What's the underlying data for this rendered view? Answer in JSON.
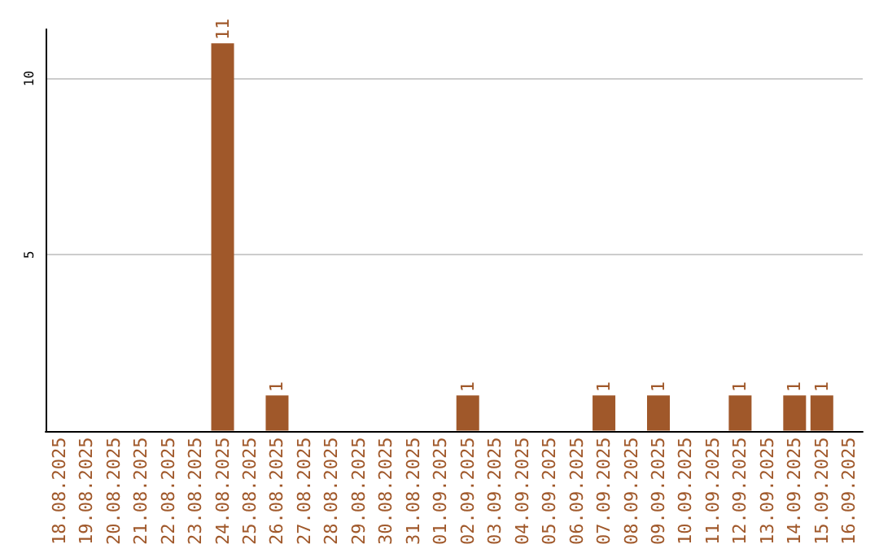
{
  "chart_data": {
    "type": "bar",
    "categories": [
      "18.08.2025",
      "19.08.2025",
      "20.08.2025",
      "21.08.2025",
      "22.08.2025",
      "23.08.2025",
      "24.08.2025",
      "25.08.2025",
      "26.08.2025",
      "27.08.2025",
      "28.08.2025",
      "29.08.2025",
      "30.08.2025",
      "31.08.2025",
      "01.09.2025",
      "02.09.2025",
      "03.09.2025",
      "04.09.2025",
      "05.09.2025",
      "06.09.2025",
      "07.09.2025",
      "08.09.2025",
      "09.09.2025",
      "10.09.2025",
      "11.09.2025",
      "12.09.2025",
      "13.09.2025",
      "14.09.2025",
      "15.09.2025",
      "16.09.2025"
    ],
    "values": [
      0,
      0,
      0,
      0,
      0,
      0,
      11,
      0,
      1,
      0,
      0,
      0,
      0,
      0,
      0,
      1,
      0,
      0,
      0,
      0,
      1,
      0,
      1,
      0,
      0,
      1,
      0,
      1,
      1,
      0
    ],
    "value_labels": [
      null,
      null,
      null,
      null,
      null,
      null,
      "11",
      null,
      "1",
      null,
      null,
      null,
      null,
      null,
      null,
      "1",
      null,
      null,
      null,
      null,
      "1",
      null,
      "1",
      null,
      null,
      "1",
      null,
      "1",
      "1",
      null
    ],
    "color": "#a0582a",
    "ylim": [
      0,
      11.4
    ],
    "yticks": [
      5,
      10
    ],
    "grid": "y"
  }
}
